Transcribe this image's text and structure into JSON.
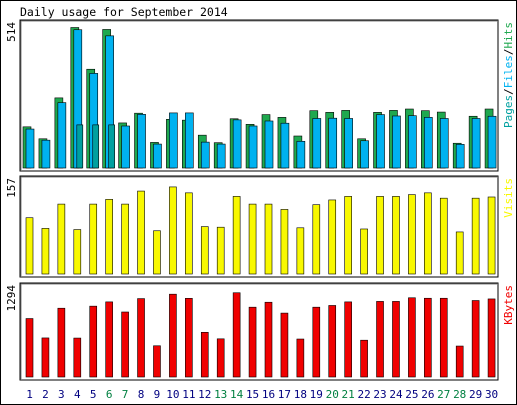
{
  "chart_data": {
    "type": "bar",
    "title": "Daily usage for September 2014",
    "categories": [
      "1",
      "2",
      "3",
      "4",
      "5",
      "6",
      "7",
      "8",
      "9",
      "10",
      "11",
      "12",
      "13",
      "14",
      "15",
      "16",
      "17",
      "18",
      "19",
      "20",
      "21",
      "22",
      "23",
      "24",
      "25",
      "26",
      "27",
      "28",
      "29",
      "30"
    ],
    "weekend_days": [
      "6",
      "7",
      "13",
      "14",
      "20",
      "21",
      "27",
      "28"
    ],
    "colors": {
      "hits": "#1fa84f",
      "files": "#00b2f0",
      "pages": "#00a0a0",
      "visits": "#f8f800",
      "kbytes": "#f00000",
      "weekday_label": "#000080",
      "weekend_label": "#008040",
      "plot_background": "#ffffff",
      "frame_background": "#ffffff"
    },
    "panels": [
      {
        "name": "hits-files-pages",
        "y_max_label": "514",
        "ylim": [
          0,
          514
        ],
        "right_label": [
          {
            "text": "Pages",
            "color": "#00a0a0"
          },
          {
            "text": "/",
            "color": "#000000"
          },
          {
            "text": "Files",
            "color": "#00b2f0"
          },
          {
            "text": "/",
            "color": "#000000"
          },
          {
            "text": "Hits",
            "color": "#1fa84f"
          }
        ],
        "series": [
          {
            "name": "Hits",
            "values": [
              148,
              105,
              252,
              505,
              355,
              498,
              162,
              197,
              92,
              175,
              172,
              118,
              91,
              177,
              157,
              192,
              182,
              115,
              206,
              200,
              207,
              105,
              200,
              207,
              212,
              206,
              201,
              89,
              186,
              212
            ]
          },
          {
            "name": "Files",
            "values": [
              140,
              100,
              235,
              497,
              340,
              475,
              151,
              193,
              86,
              198,
              198,
              93,
              86,
              173,
              151,
              169,
              161,
              96,
              178,
              179,
              178,
              98,
              192,
              187,
              188,
              182,
              178,
              85,
              178,
              186
            ]
          },
          {
            "name": "Pages",
            "values": [
              0,
              0,
              0,
              155,
              155,
              155,
              0,
              0,
              0,
              0,
              0,
              0,
              0,
              0,
              0,
              0,
              0,
              0,
              0,
              0,
              0,
              0,
              0,
              0,
              0,
              0,
              0,
              0,
              0,
              0
            ]
          }
        ]
      },
      {
        "name": "visits",
        "y_max_label": "157",
        "ylim": [
          0,
          157
        ],
        "right_label": [
          {
            "text": "Visits",
            "color": "#f8f800"
          }
        ],
        "series": [
          {
            "name": "Visits",
            "values": [
              95,
              77,
              118,
              75,
              118,
              126,
              118,
              140,
              73,
              147,
              137,
              80,
              79,
              131,
              118,
              118,
              109,
              78,
              117,
              125,
              131,
              76,
              131,
              131,
              134,
              137,
              128,
              71,
              128,
              130
            ]
          }
        ]
      },
      {
        "name": "kbytes",
        "y_max_label": "1294",
        "ylim": [
          0,
          1294
        ],
        "right_label": [
          {
            "text": "KBytes",
            "color": "#f00000"
          }
        ],
        "series": [
          {
            "name": "KBytes",
            "values": [
              850,
              568,
              1000,
              566,
              1030,
              1092,
              945,
              1140,
              454,
              1204,
              1144,
              650,
              555,
              1225,
              1015,
              1087,
              929,
              552,
              1015,
              1040,
              1092,
              535,
              1099,
              1099,
              1152,
              1145,
              1145,
              450,
              1112,
              1135
            ]
          }
        ]
      }
    ],
    "grid": false,
    "legend": "right"
  }
}
